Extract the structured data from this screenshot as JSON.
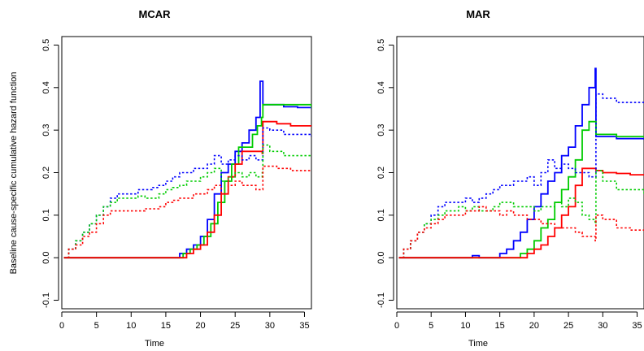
{
  "chart_data": [
    {
      "type": "line",
      "title": "MCAR",
      "xlabel": "Time",
      "ylabel": "Baseline cause-specific cumulative hazard function",
      "xlim": [
        0,
        36
      ],
      "ylim": [
        -0.12,
        0.52
      ],
      "x_ticks": [
        0,
        5,
        10,
        15,
        20,
        25,
        30,
        35
      ],
      "y_ticks": [
        -0.1,
        0.0,
        0.1,
        0.2,
        0.3,
        0.4,
        0.5
      ],
      "x_tick_labels": [
        "0",
        "5",
        "10",
        "15",
        "20",
        "25",
        "30",
        "35"
      ],
      "y_tick_labels": [
        "-0.1",
        "0.0",
        "0.1",
        "0.2",
        "0.3",
        "0.4",
        "0.5"
      ],
      "grid": false,
      "legend": "none",
      "series": [
        {
          "color": "#0000ff",
          "style": "solid",
          "x": [
            0.3,
            16.0,
            17.0,
            18.0,
            19.0,
            20.0,
            21.0,
            22.0,
            23.0,
            24.0,
            25.0,
            26.0,
            27.0,
            28.0,
            28.6,
            29.0,
            30.0,
            32.0,
            34.0,
            36.0
          ],
          "y": [
            0,
            0,
            0.01,
            0.02,
            0.03,
            0.05,
            0.09,
            0.15,
            0.2,
            0.22,
            0.25,
            0.27,
            0.3,
            0.33,
            0.415,
            0.36,
            0.36,
            0.355,
            0.353,
            0.352
          ]
        },
        {
          "color": "#00cc00",
          "style": "solid",
          "x": [
            0.3,
            16.5,
            17.5,
            18.5,
            19.5,
            20.5,
            21.5,
            22.5,
            23.5,
            24.5,
            25.5,
            26.5,
            27.5,
            28.2,
            28.8,
            29.0,
            36.0
          ],
          "y": [
            0,
            0,
            0.01,
            0.02,
            0.03,
            0.05,
            0.08,
            0.13,
            0.18,
            0.22,
            0.26,
            0.26,
            0.29,
            0.31,
            0.33,
            0.36,
            0.352
          ]
        },
        {
          "color": "#ff0000",
          "style": "solid",
          "x": [
            0.3,
            17.0,
            18.0,
            19.0,
            20.0,
            21.0,
            22.0,
            23.0,
            24.0,
            25.0,
            26.0,
            27.0,
            28.0,
            28.9,
            29.0,
            31.0,
            33.0,
            36.0
          ],
          "y": [
            0,
            0,
            0.01,
            0.02,
            0.03,
            0.06,
            0.1,
            0.15,
            0.19,
            0.22,
            0.25,
            0.25,
            0.25,
            0.245,
            0.32,
            0.315,
            0.31,
            0.31
          ]
        },
        {
          "color": "#0000ff",
          "style": "dotted",
          "x": [
            0.3,
            1.0,
            2.0,
            3.0,
            4.0,
            5.0,
            6.0,
            7.0,
            8.0,
            9.0,
            10.0,
            11.0,
            12.0,
            13.0,
            14.0,
            15.0,
            16.0,
            17.0,
            18.0,
            19.0,
            20.0,
            21.0,
            22.0,
            23.0,
            24.0,
            25.0,
            26.0,
            27.0,
            28.0,
            28.9,
            29.0,
            30.0,
            32.0,
            36.0
          ],
          "y": [
            0,
            0.02,
            0.04,
            0.06,
            0.08,
            0.1,
            0.12,
            0.14,
            0.15,
            0.15,
            0.15,
            0.16,
            0.16,
            0.165,
            0.17,
            0.18,
            0.19,
            0.2,
            0.2,
            0.21,
            0.21,
            0.22,
            0.24,
            0.22,
            0.23,
            0.24,
            0.23,
            0.24,
            0.23,
            0.23,
            0.305,
            0.3,
            0.29,
            0.285
          ]
        },
        {
          "color": "#00cc00",
          "style": "dotted",
          "x": [
            0.3,
            1.0,
            2.0,
            3.0,
            4.0,
            5.0,
            6.0,
            7.0,
            8.0,
            9.0,
            10.0,
            11.0,
            12.0,
            13.0,
            14.0,
            15.0,
            16.0,
            17.0,
            18.0,
            19.0,
            20.0,
            21.0,
            22.0,
            23.0,
            24.0,
            25.0,
            26.0,
            27.0,
            28.0,
            28.9,
            29.0,
            30.0,
            32.0,
            36.0
          ],
          "y": [
            0,
            0.02,
            0.04,
            0.06,
            0.08,
            0.1,
            0.12,
            0.13,
            0.14,
            0.14,
            0.14,
            0.145,
            0.14,
            0.14,
            0.15,
            0.16,
            0.165,
            0.17,
            0.18,
            0.18,
            0.19,
            0.2,
            0.21,
            0.18,
            0.19,
            0.2,
            0.19,
            0.2,
            0.19,
            0.2,
            0.265,
            0.25,
            0.24,
            0.24
          ]
        },
        {
          "color": "#ff0000",
          "style": "dotted",
          "x": [
            0.3,
            1.0,
            2.0,
            3.0,
            4.0,
            5.0,
            6.0,
            7.0,
            8.0,
            9.0,
            10.0,
            11.0,
            12.0,
            13.0,
            14.0,
            15.0,
            16.0,
            17.0,
            18.0,
            19.0,
            20.0,
            21.0,
            22.0,
            23.0,
            24.0,
            25.0,
            26.0,
            27.0,
            28.0,
            28.9,
            29.0,
            31.0,
            33.0,
            36.0
          ],
          "y": [
            0,
            0.02,
            0.03,
            0.05,
            0.06,
            0.08,
            0.1,
            0.11,
            0.11,
            0.11,
            0.11,
            0.11,
            0.115,
            0.115,
            0.12,
            0.13,
            0.135,
            0.14,
            0.14,
            0.15,
            0.15,
            0.16,
            0.17,
            0.15,
            0.17,
            0.18,
            0.17,
            0.17,
            0.16,
            0.16,
            0.215,
            0.21,
            0.205,
            0.205
          ]
        }
      ]
    },
    {
      "type": "line",
      "title": "MAR",
      "xlabel": "Time",
      "ylabel": "",
      "xlim": [
        0,
        36
      ],
      "ylim": [
        -0.12,
        0.52
      ],
      "x_ticks": [
        0,
        5,
        10,
        15,
        20,
        25,
        30,
        35
      ],
      "y_ticks": [
        -0.1,
        0.0,
        0.1,
        0.2,
        0.3,
        0.4,
        0.5
      ],
      "x_tick_labels": [
        "0",
        "5",
        "10",
        "15",
        "20",
        "25",
        "30",
        "35"
      ],
      "y_tick_labels": [
        "-0.1",
        "0.0",
        "0.1",
        "0.2",
        "0.3",
        "0.4",
        "0.5"
      ],
      "grid": false,
      "legend": "none",
      "series": [
        {
          "color": "#0000ff",
          "style": "solid",
          "x": [
            0.3,
            10.5,
            11.0,
            12.0,
            14.0,
            15.0,
            16.0,
            17.0,
            18.0,
            19.0,
            20.0,
            21.0,
            22.0,
            23.0,
            24.0,
            25.0,
            26.0,
            27.0,
            28.0,
            28.9,
            29.0,
            32.0,
            36.0
          ],
          "y": [
            0,
            0,
            0.005,
            0,
            0,
            0.01,
            0.02,
            0.04,
            0.06,
            0.09,
            0.12,
            0.15,
            0.18,
            0.2,
            0.24,
            0.26,
            0.31,
            0.36,
            0.4,
            0.445,
            0.285,
            0.28,
            0.278
          ]
        },
        {
          "color": "#00cc00",
          "style": "solid",
          "x": [
            0.3,
            17.0,
            18.0,
            19.0,
            20.0,
            21.0,
            22.0,
            23.0,
            24.0,
            25.0,
            26.0,
            27.0,
            28.0,
            28.9,
            29.0,
            32.0,
            36.0
          ],
          "y": [
            0,
            0,
            0.01,
            0.02,
            0.04,
            0.07,
            0.09,
            0.13,
            0.16,
            0.19,
            0.23,
            0.3,
            0.32,
            0.32,
            0.29,
            0.285,
            0.282
          ]
        },
        {
          "color": "#ff0000",
          "style": "solid",
          "x": [
            0.3,
            18.0,
            19.0,
            20.0,
            21.0,
            22.0,
            23.0,
            24.0,
            25.0,
            26.0,
            27.0,
            28.0,
            29.0,
            30.0,
            32.0,
            34.0,
            36.0
          ],
          "y": [
            0,
            0,
            0.01,
            0.02,
            0.03,
            0.05,
            0.07,
            0.1,
            0.12,
            0.17,
            0.21,
            0.21,
            0.205,
            0.2,
            0.198,
            0.195,
            0.195
          ]
        },
        {
          "color": "#0000ff",
          "style": "dotted",
          "x": [
            0.3,
            1.0,
            2.0,
            3.0,
            4.0,
            5.0,
            6.0,
            7.0,
            8.0,
            9.0,
            10.0,
            11.0,
            12.0,
            13.0,
            14.0,
            15.0,
            16.0,
            17.0,
            18.0,
            19.0,
            20.0,
            21.0,
            22.0,
            23.0,
            24.0,
            25.0,
            26.0,
            27.0,
            28.0,
            28.9,
            29.0,
            30.0,
            32.0,
            36.0
          ],
          "y": [
            0,
            0.02,
            0.04,
            0.06,
            0.08,
            0.1,
            0.12,
            0.13,
            0.13,
            0.13,
            0.14,
            0.13,
            0.14,
            0.15,
            0.16,
            0.17,
            0.17,
            0.18,
            0.18,
            0.19,
            0.17,
            0.2,
            0.23,
            0.21,
            0.22,
            0.21,
            0.2,
            0.2,
            0.19,
            0.19,
            0.385,
            0.375,
            0.365,
            0.36
          ]
        },
        {
          "color": "#00cc00",
          "style": "dotted",
          "x": [
            0.3,
            1.0,
            2.0,
            3.0,
            4.0,
            5.0,
            6.0,
            7.0,
            8.0,
            9.0,
            10.0,
            11.0,
            12.0,
            13.0,
            14.0,
            15.0,
            16.0,
            17.0,
            18.0,
            19.0,
            20.0,
            21.0,
            22.0,
            23.0,
            24.0,
            25.0,
            26.0,
            27.0,
            28.0,
            28.9,
            29.0,
            30.0,
            32.0,
            36.0
          ],
          "y": [
            0,
            0.02,
            0.04,
            0.06,
            0.08,
            0.09,
            0.1,
            0.11,
            0.11,
            0.12,
            0.11,
            0.12,
            0.11,
            0.11,
            0.12,
            0.13,
            0.13,
            0.12,
            0.12,
            0.12,
            0.11,
            0.12,
            0.12,
            0.13,
            0.12,
            0.14,
            0.13,
            0.1,
            0.09,
            0.08,
            0.205,
            0.18,
            0.16,
            0.15
          ]
        },
        {
          "color": "#ff0000",
          "style": "dotted",
          "x": [
            0.3,
            1.0,
            2.0,
            3.0,
            4.0,
            5.0,
            6.0,
            7.0,
            8.0,
            9.0,
            10.0,
            11.0,
            12.0,
            13.0,
            14.0,
            15.0,
            16.0,
            17.0,
            18.0,
            19.0,
            20.0,
            21.0,
            22.0,
            23.0,
            24.0,
            25.0,
            26.0,
            27.0,
            28.0,
            28.9,
            29.0,
            30.0,
            32.0,
            34.0,
            36.0
          ],
          "y": [
            0,
            0.02,
            0.04,
            0.06,
            0.07,
            0.08,
            0.09,
            0.1,
            0.1,
            0.1,
            0.11,
            0.11,
            0.12,
            0.11,
            0.11,
            0.1,
            0.11,
            0.1,
            0.1,
            0.09,
            0.09,
            0.08,
            0.08,
            0.07,
            0.07,
            0.07,
            0.06,
            0.05,
            0.05,
            0.04,
            0.1,
            0.09,
            0.07,
            0.065,
            0.065
          ]
        }
      ]
    }
  ]
}
